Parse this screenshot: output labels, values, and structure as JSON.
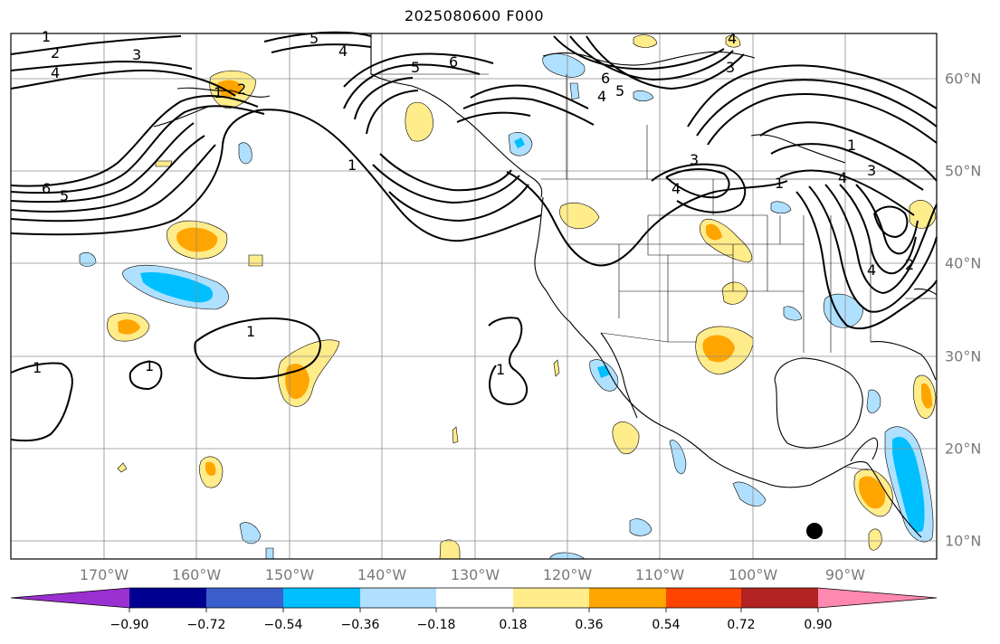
{
  "title": "2025080600 F000",
  "lon_labels": [
    "170°W",
    "160°W",
    "150°W",
    "140°W",
    "130°W",
    "120°W",
    "110°W",
    "100°W",
    "90°W"
  ],
  "lat_labels": [
    "60°N",
    "50°N",
    "40°N",
    "30°N",
    "20°N",
    "10°N"
  ],
  "colorbar": {
    "tick_labels": [
      "−0.90",
      "−0.72",
      "−0.54",
      "−0.36",
      "−0.18",
      "0.18",
      "0.36",
      "0.54",
      "0.72",
      "0.90"
    ],
    "colors": [
      "#9b30d0",
      "#000090",
      "#3a5fcd",
      "#00bfff",
      "#b0e0ff",
      "#ffffff",
      "#ffec8b",
      "#ffa500",
      "#ff4500",
      "#b22222",
      "#ff88b0"
    ]
  },
  "contour_labels": [
    "1",
    "2",
    "3",
    "4",
    "5",
    "6"
  ],
  "map_elements": {
    "marker": "black-dot",
    "coast_color": "#000000",
    "grid_color": "#8c8c8c"
  }
}
